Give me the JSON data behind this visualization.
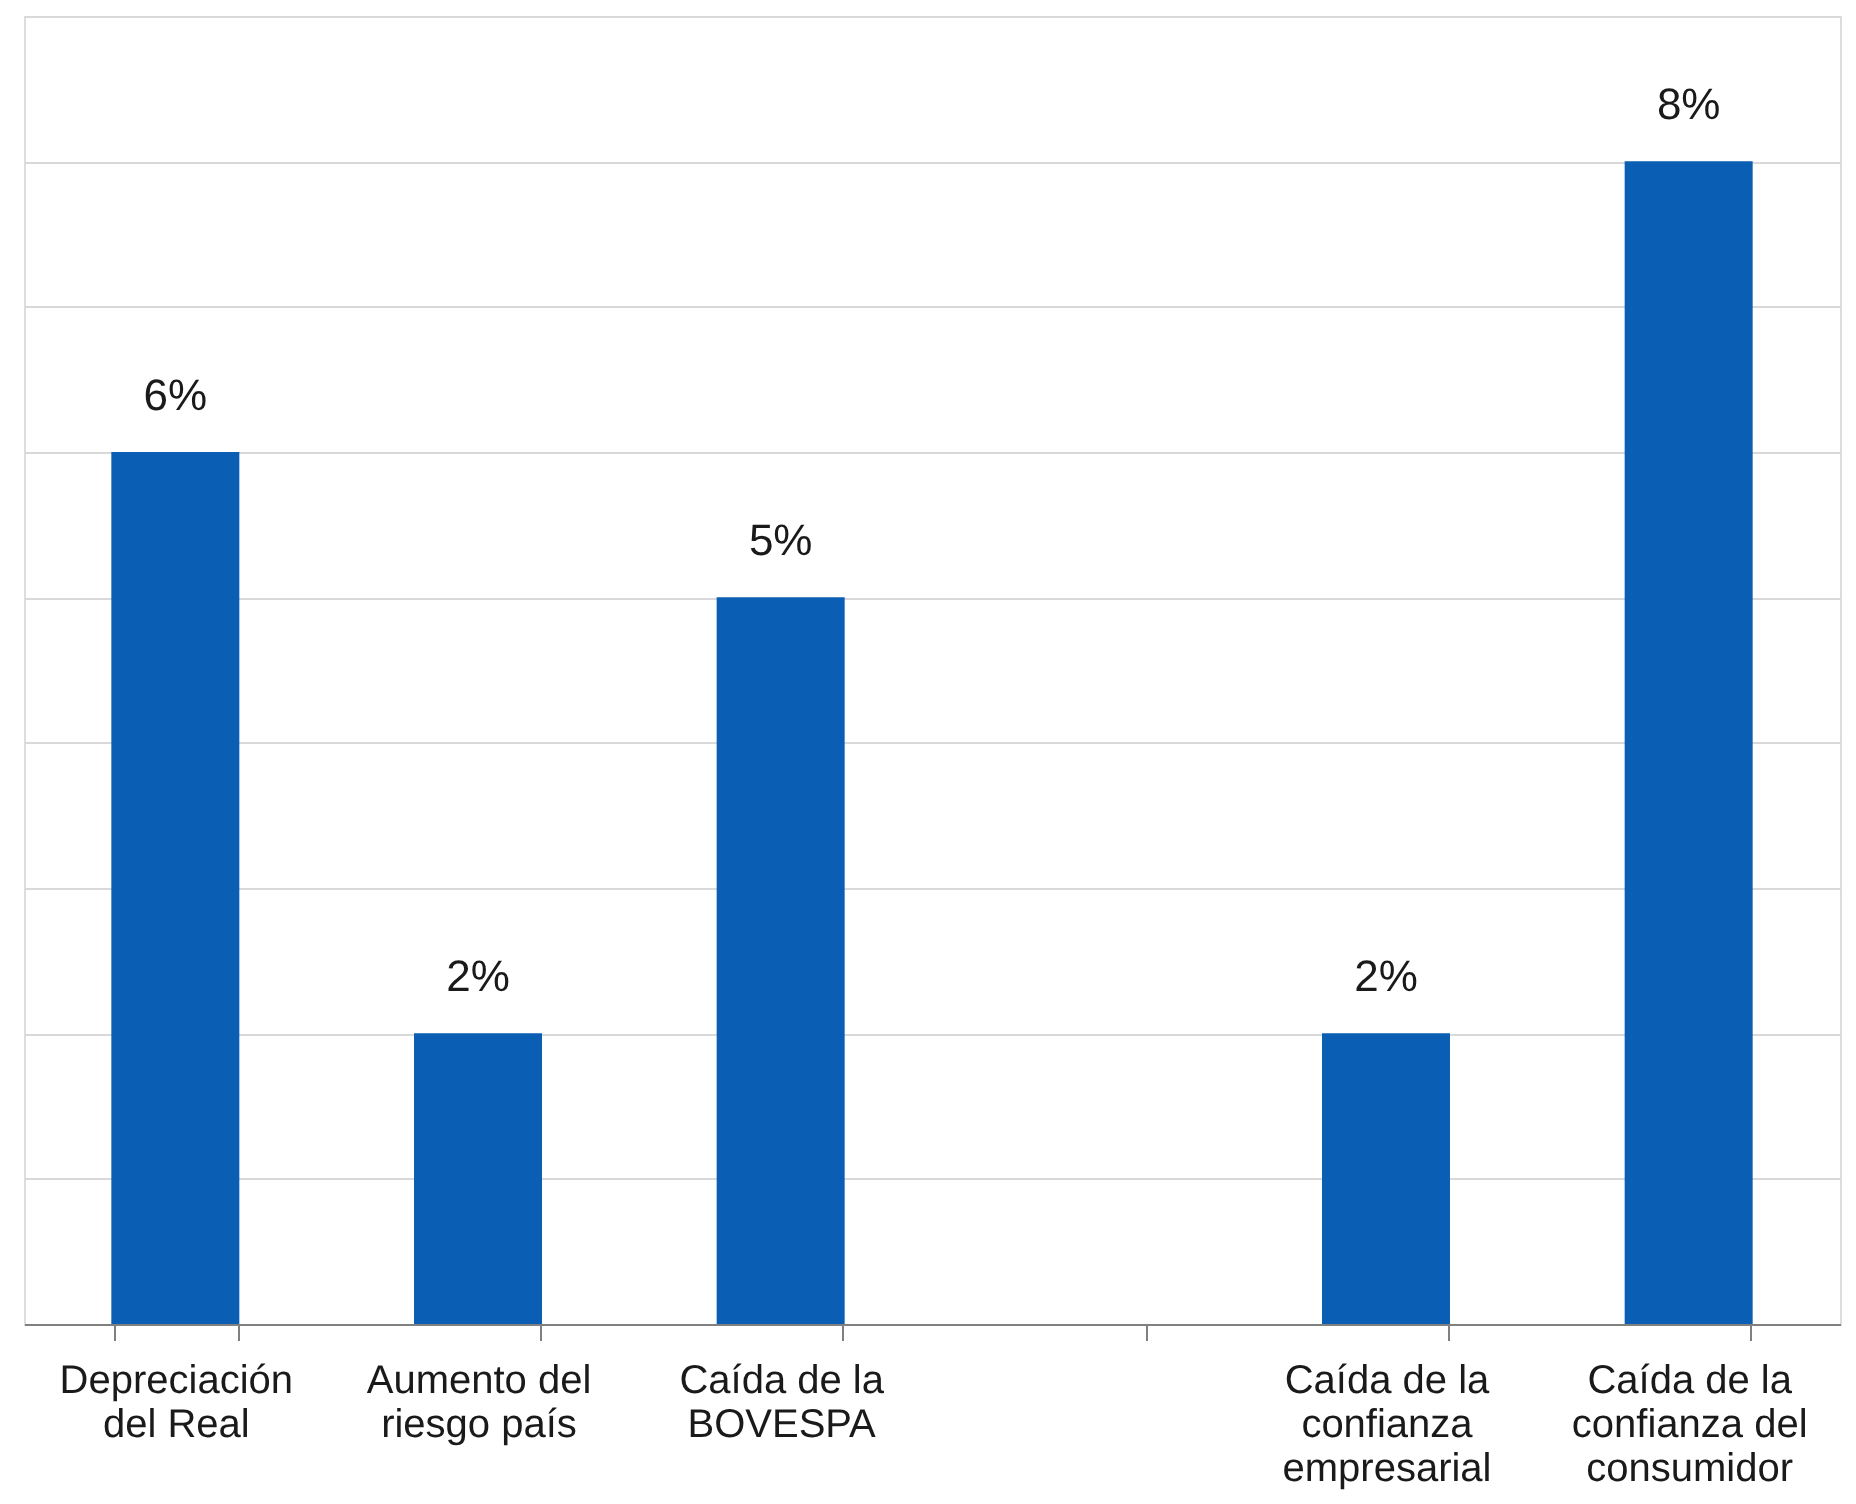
{
  "chart_data": {
    "type": "bar",
    "categories": [
      "Depreciación del Real",
      "Aumento del riesgo país",
      "Caída de la BOVESPA",
      null,
      "Caída de la confianza empresarial",
      "Caída de la confianza del consumidor"
    ],
    "values": [
      6,
      2,
      5,
      null,
      2,
      8
    ],
    "value_labels": [
      "6%",
      "2%",
      "5%",
      null,
      "2%",
      "8%"
    ],
    "color": "#0a5eb4",
    "ylim": [
      0,
      9
    ],
    "yticks": [
      {
        "value": 0,
        "label": null
      },
      {
        "value": 1,
        "label": null
      },
      {
        "value": 2,
        "label": null
      },
      {
        "value": 3,
        "label": null
      },
      {
        "value": 4,
        "label": null
      },
      {
        "value": 5,
        "label": null
      },
      {
        "value": 6,
        "label": null
      },
      {
        "value": 7,
        "label": null
      },
      {
        "value": 8,
        "label": null
      },
      {
        "value": 9,
        "label": null
      }
    ],
    "grid": "y",
    "tick_labels": "x"
  }
}
